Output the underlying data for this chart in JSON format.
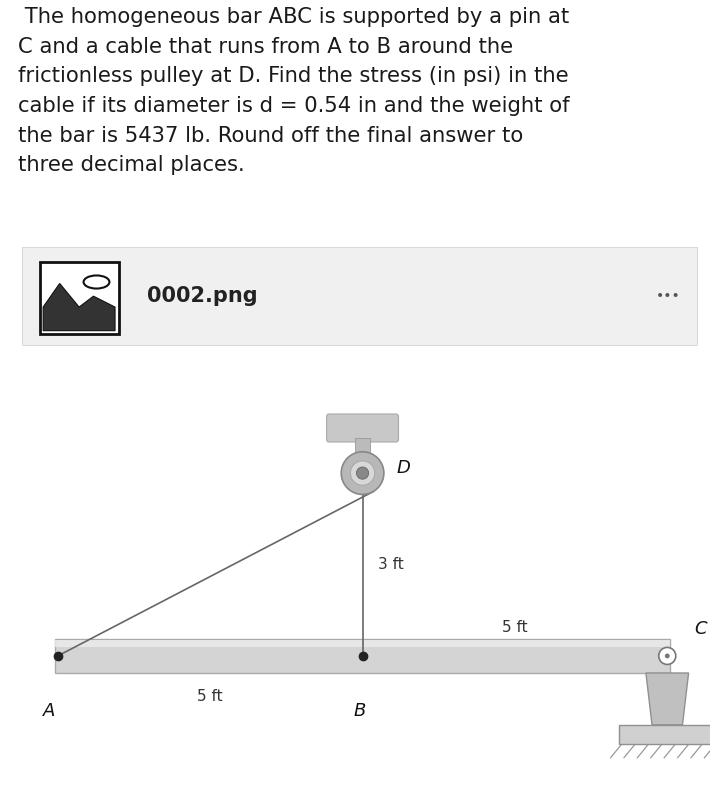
{
  "bg_color": "#ffffff",
  "text_color": "#1a1a1a",
  "problem_text": " The homogeneous bar ABC is supported by a pin at\nC and a cable that runs from A to B around the\nfrictionless pulley at D. Find the stress (in psi) in the\ncable if its diameter is d = 0.54 in and the weight of\nthe bar is 5437 lb. Round off the final answer to\nthree decimal places.",
  "file_label": "0002.png",
  "gray_box_bg": "#f0f0f0",
  "label_5ft_left": "5 ft",
  "label_5ft_right": "5 ft",
  "label_3ft": "3 ft",
  "label_A": "A",
  "label_B": "B",
  "label_C": "C",
  "label_D": "D",
  "bar_gray": "#d4d4d4",
  "bar_edge": "#aaaaaa",
  "pulley_outer": "#b8b8b8",
  "pulley_inner": "#d8d8d8",
  "support_gray": "#c0c0c0",
  "support_edge": "#909090",
  "cable_color": "#666666",
  "ceil_gray": "#c8c8c8"
}
